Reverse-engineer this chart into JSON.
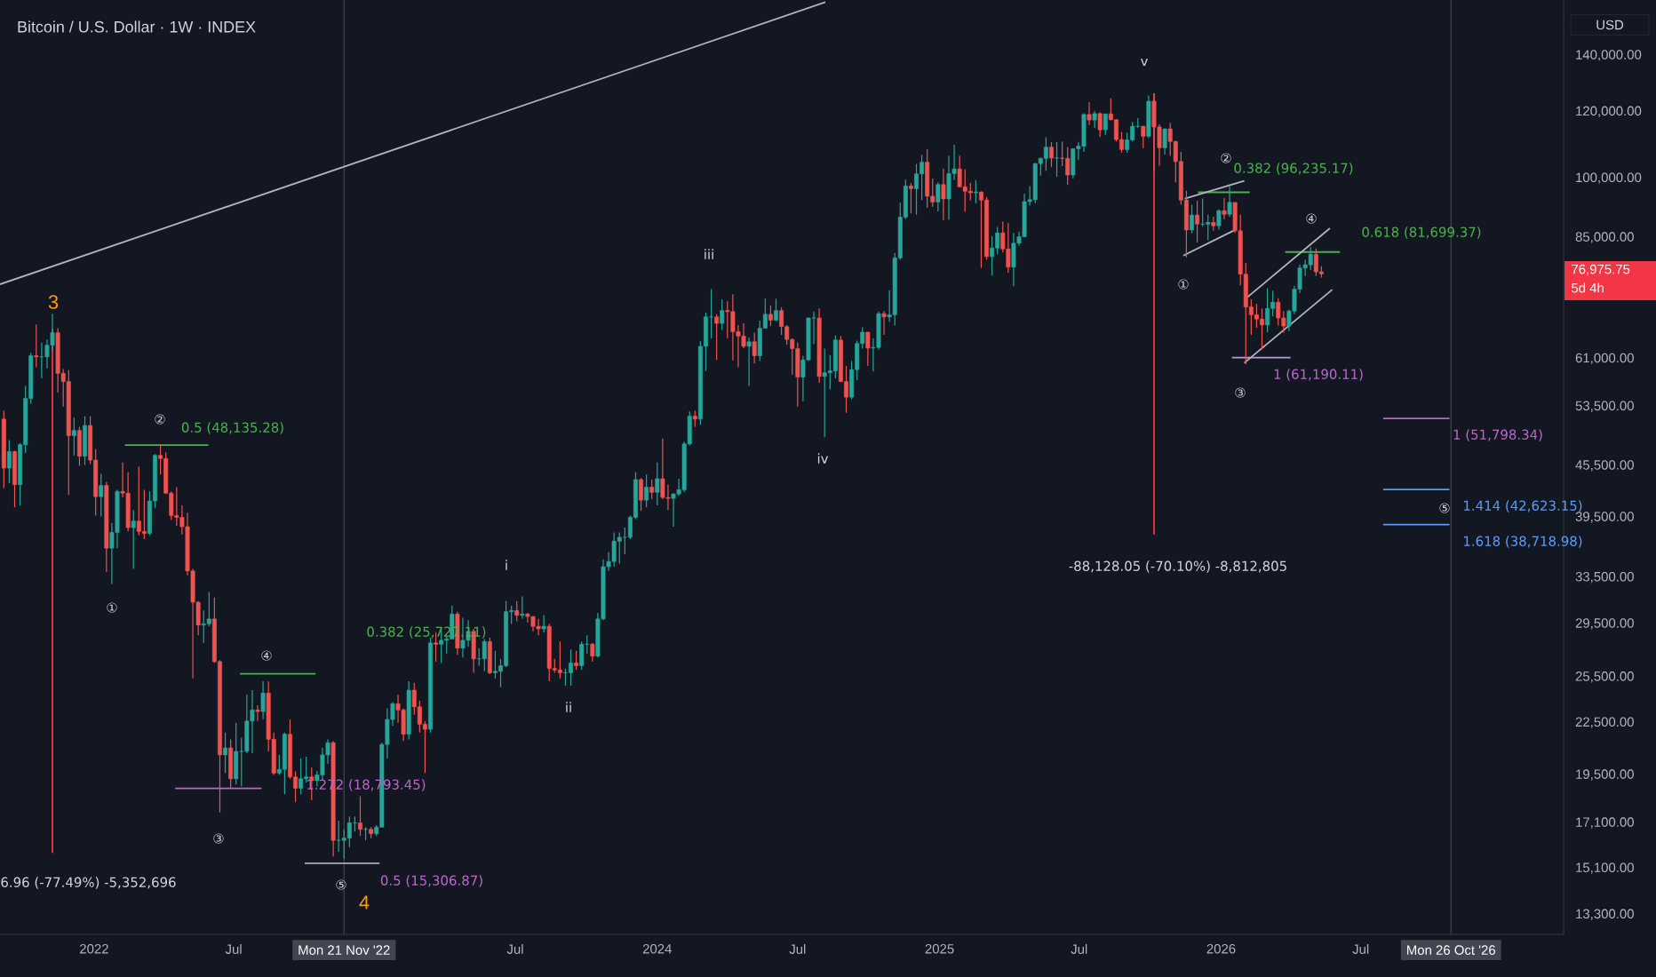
{
  "chart_data": {
    "type": "candlestick",
    "title": "Bitcoin / U.S. Dollar · 1W · INDEX",
    "log": "y",
    "xlim": [
      "2021-09-01",
      "2027-03-21"
    ],
    "ylim": [
      12600,
      163000
    ],
    "xticks": [
      {
        "value": "2022-01-01",
        "label": "2022"
      },
      {
        "value": "2022-07-01",
        "label": "Jul"
      },
      {
        "value": "2023-07-01",
        "label": "Jul"
      },
      {
        "value": "2024-01-01",
        "label": "2024"
      },
      {
        "value": "2024-07-01",
        "label": "Jul"
      },
      {
        "value": "2025-01-01",
        "label": "2025"
      },
      {
        "value": "2025-07-01",
        "label": "Jul"
      },
      {
        "value": "2026-01-01",
        "label": "2026"
      },
      {
        "value": "2026-07-01",
        "label": "Jul"
      }
    ],
    "yticks": [
      {
        "value": 140000,
        "label": "140,000.00"
      },
      {
        "value": 120000,
        "label": "120,000.00"
      },
      {
        "value": 100000,
        "label": "100,000.00"
      },
      {
        "value": 85000,
        "label": "85,000.00"
      },
      {
        "value": 61000,
        "label": "61,000.00"
      },
      {
        "value": 53500,
        "label": "53,500.00"
      },
      {
        "value": 45500,
        "label": "45,500.00"
      },
      {
        "value": 39500,
        "label": "39,500.00"
      },
      {
        "value": 33500,
        "label": "33,500.00"
      },
      {
        "value": 29500,
        "label": "29,500.00"
      },
      {
        "value": 25500,
        "label": "25,500.00"
      },
      {
        "value": 22500,
        "label": "22,500.00"
      },
      {
        "value": 19500,
        "label": "19,500.00"
      },
      {
        "value": 17100,
        "label": "17,100.00"
      },
      {
        "value": 15100,
        "label": "15,100.00"
      },
      {
        "value": 13300,
        "label": "13,300.00"
      }
    ],
    "x": [
      "2021-09-06",
      "2021-09-13",
      "2021-09-20",
      "2021-09-27",
      "2021-10-04",
      "2021-10-11",
      "2021-10-18",
      "2021-10-25",
      "2021-11-01",
      "2021-11-08",
      "2021-11-15",
      "2021-11-22",
      "2021-11-29",
      "2021-12-06",
      "2021-12-13",
      "2021-12-20",
      "2021-12-27",
      "2022-01-03",
      "2022-01-10",
      "2022-01-17",
      "2022-01-24",
      "2022-01-31",
      "2022-02-07",
      "2022-02-14",
      "2022-02-21",
      "2022-02-28",
      "2022-03-07",
      "2022-03-14",
      "2022-03-21",
      "2022-03-28",
      "2022-04-04",
      "2022-04-11",
      "2022-04-18",
      "2022-04-25",
      "2022-05-02",
      "2022-05-09",
      "2022-05-16",
      "2022-05-23",
      "2022-05-30",
      "2022-06-06",
      "2022-06-13",
      "2022-06-20",
      "2022-06-27",
      "2022-07-04",
      "2022-07-11",
      "2022-07-18",
      "2022-07-25",
      "2022-08-01",
      "2022-08-08",
      "2022-08-15",
      "2022-08-22",
      "2022-08-29",
      "2022-09-05",
      "2022-09-12",
      "2022-09-19",
      "2022-09-26",
      "2022-10-03",
      "2022-10-10",
      "2022-10-17",
      "2022-10-24",
      "2022-10-31",
      "2022-11-07",
      "2022-11-14",
      "2022-11-21",
      "2022-11-28",
      "2022-12-05",
      "2022-12-12",
      "2022-12-19",
      "2022-12-26",
      "2023-01-02",
      "2023-01-09",
      "2023-01-16",
      "2023-01-23",
      "2023-01-30",
      "2023-02-06",
      "2023-02-13",
      "2023-02-20",
      "2023-02-27",
      "2023-03-06",
      "2023-03-13",
      "2023-03-20",
      "2023-03-27",
      "2023-04-03",
      "2023-04-10",
      "2023-04-17",
      "2023-04-24",
      "2023-05-01",
      "2023-05-08",
      "2023-05-15",
      "2023-05-22",
      "2023-05-29",
      "2023-06-05",
      "2023-06-12",
      "2023-06-19",
      "2023-06-26",
      "2023-07-03",
      "2023-07-10",
      "2023-07-17",
      "2023-07-24",
      "2023-07-31",
      "2023-08-07",
      "2023-08-14",
      "2023-08-21",
      "2023-08-28",
      "2023-09-04",
      "2023-09-11",
      "2023-09-18",
      "2023-09-25",
      "2023-10-02",
      "2023-10-09",
      "2023-10-16",
      "2023-10-23",
      "2023-10-30",
      "2023-11-06",
      "2023-11-13",
      "2023-11-20",
      "2023-11-27",
      "2023-12-04",
      "2023-12-11",
      "2023-12-18",
      "2023-12-25",
      "2024-01-01",
      "2024-01-08",
      "2024-01-15",
      "2024-01-22",
      "2024-01-29",
      "2024-02-05",
      "2024-02-12",
      "2024-02-19",
      "2024-02-26",
      "2024-03-04",
      "2024-03-11",
      "2024-03-18",
      "2024-03-25",
      "2024-04-01",
      "2024-04-08",
      "2024-04-15",
      "2024-04-22",
      "2024-04-29",
      "2024-05-06",
      "2024-05-13",
      "2024-05-20",
      "2024-05-27",
      "2024-06-03",
      "2024-06-10",
      "2024-06-17",
      "2024-06-24",
      "2024-07-01",
      "2024-07-08",
      "2024-07-15",
      "2024-07-22",
      "2024-07-29",
      "2024-08-05",
      "2024-08-12",
      "2024-08-19",
      "2024-08-26",
      "2024-09-02",
      "2024-09-09",
      "2024-09-16",
      "2024-09-23",
      "2024-09-30",
      "2024-10-07",
      "2024-10-14",
      "2024-10-21",
      "2024-10-28",
      "2024-11-04",
      "2024-11-11",
      "2024-11-18",
      "2024-11-25",
      "2024-12-02",
      "2024-12-09",
      "2024-12-16",
      "2024-12-23",
      "2024-12-30",
      "2025-01-06",
      "2025-01-13",
      "2025-01-20",
      "2025-01-27",
      "2025-02-03",
      "2025-02-10",
      "2025-02-17",
      "2025-02-24",
      "2025-03-03",
      "2025-03-10",
      "2025-03-17",
      "2025-03-24",
      "2025-03-31",
      "2025-04-07",
      "2025-04-14",
      "2025-04-21",
      "2025-04-28",
      "2025-05-05",
      "2025-05-12",
      "2025-05-19",
      "2025-05-26",
      "2025-06-02",
      "2025-06-09",
      "2025-06-16",
      "2025-06-23",
      "2025-06-30",
      "2025-07-07",
      "2025-07-14",
      "2025-07-21",
      "2025-07-28",
      "2025-08-04",
      "2025-08-11",
      "2025-08-18",
      "2025-08-25",
      "2025-09-01",
      "2025-09-08",
      "2025-09-15",
      "2025-09-22",
      "2025-09-29",
      "2025-10-06",
      "2025-10-13",
      "2025-10-20",
      "2025-10-27",
      "2025-11-03",
      "2025-11-10",
      "2025-11-17",
      "2025-11-24",
      "2025-12-01",
      "2025-12-08",
      "2025-12-15",
      "2025-12-22",
      "2025-12-29",
      "2026-01-05",
      "2026-01-12",
      "2026-01-19",
      "2026-01-26",
      "2026-02-02",
      "2026-02-09",
      "2026-02-16",
      "2026-02-23",
      "2026-03-02",
      "2026-03-09",
      "2026-03-16",
      "2026-03-23",
      "2026-03-30",
      "2026-04-06",
      "2026-04-13",
      "2026-04-20",
      "2026-04-27",
      "2026-05-04",
      "2026-05-11"
    ],
    "ohlc": [
      [
        51700,
        52900,
        42800,
        45200
      ],
      [
        45200,
        48800,
        43400,
        47300
      ],
      [
        47300,
        47400,
        40600,
        43200
      ],
      [
        43200,
        48400,
        40800,
        48200
      ],
      [
        48200,
        56600,
        47100,
        54700
      ],
      [
        54700,
        62000,
        53900,
        61500
      ],
      [
        61500,
        67000,
        59600,
        61300
      ],
      [
        61300,
        63700,
        57800,
        61300
      ],
      [
        61300,
        64300,
        59400,
        63300
      ],
      [
        63300,
        69000,
        62300,
        65500
      ],
      [
        65500,
        66300,
        55600,
        58600
      ],
      [
        58600,
        59300,
        53500,
        57300
      ],
      [
        57300,
        59100,
        42000,
        49400
      ],
      [
        49400,
        51900,
        46800,
        50100
      ],
      [
        50100,
        50600,
        45500,
        46700
      ],
      [
        46700,
        52100,
        45600,
        50800
      ],
      [
        50800,
        52100,
        45700,
        46200
      ],
      [
        46200,
        47600,
        39700,
        41800
      ],
      [
        41800,
        44500,
        39600,
        43100
      ],
      [
        43100,
        43500,
        34000,
        36300
      ],
      [
        36300,
        38900,
        32900,
        37900
      ],
      [
        37900,
        42600,
        36300,
        42400
      ],
      [
        42400,
        45900,
        41700,
        42200
      ],
      [
        42200,
        44700,
        38000,
        38400
      ],
      [
        38400,
        40300,
        34300,
        39100
      ],
      [
        39100,
        45400,
        37600,
        38000
      ],
      [
        38000,
        42600,
        37200,
        37800
      ],
      [
        37800,
        42400,
        37600,
        41300
      ],
      [
        41300,
        47000,
        40500,
        46800
      ],
      [
        46800,
        48200,
        44400,
        46400
      ],
      [
        46400,
        47200,
        42100,
        42200
      ],
      [
        42200,
        42400,
        39200,
        39700
      ],
      [
        39700,
        42900,
        38600,
        39500
      ],
      [
        39500,
        40800,
        37700,
        38500
      ],
      [
        38500,
        40000,
        33700,
        34100
      ],
      [
        34100,
        34300,
        25400,
        31300
      ],
      [
        31300,
        31400,
        28600,
        29400
      ],
      [
        29400,
        30600,
        28000,
        29500
      ],
      [
        29500,
        32200,
        29300,
        29900
      ],
      [
        29900,
        31700,
        26500,
        26600
      ],
      [
        26600,
        26700,
        17600,
        20600
      ],
      [
        20600,
        21900,
        19600,
        21000
      ],
      [
        21000,
        21500,
        18800,
        19300
      ],
      [
        19300,
        22500,
        19000,
        20800
      ],
      [
        20800,
        21600,
        18900,
        20800
      ],
      [
        20800,
        24300,
        20700,
        22600
      ],
      [
        22600,
        24600,
        20700,
        23300
      ],
      [
        23300,
        23600,
        22600,
        23200
      ],
      [
        23200,
        25200,
        22700,
        24400
      ],
      [
        24400,
        25200,
        20800,
        21500
      ],
      [
        21500,
        21900,
        19500,
        19600
      ],
      [
        19600,
        20600,
        19500,
        19800
      ],
      [
        19800,
        21900,
        18500,
        21800
      ],
      [
        21800,
        22700,
        19300,
        19400
      ],
      [
        19400,
        19700,
        18100,
        18800
      ],
      [
        18800,
        20400,
        18500,
        19300
      ],
      [
        19300,
        20500,
        19100,
        19400
      ],
      [
        19400,
        19900,
        18200,
        19200
      ],
      [
        19200,
        19700,
        18900,
        19500
      ],
      [
        19500,
        21000,
        19200,
        20600
      ],
      [
        20600,
        21500,
        20100,
        21300
      ],
      [
        21300,
        21400,
        15600,
        16300
      ],
      [
        16300,
        17200,
        15800,
        16300
      ],
      [
        16300,
        16800,
        15500,
        16400
      ],
      [
        16400,
        17400,
        16000,
        17100
      ],
      [
        17100,
        17400,
        16700,
        17100
      ],
      [
        17100,
        18400,
        16500,
        16800
      ],
      [
        16800,
        16900,
        16300,
        16800
      ],
      [
        16800,
        16900,
        16400,
        16600
      ],
      [
        16600,
        17000,
        16500,
        16900
      ],
      [
        16900,
        21300,
        16900,
        21200
      ],
      [
        21200,
        23400,
        20400,
        22700
      ],
      [
        22700,
        23800,
        22300,
        23700
      ],
      [
        23700,
        24300,
        22500,
        23300
      ],
      [
        23300,
        23400,
        21400,
        21800
      ],
      [
        21800,
        25200,
        21500,
        24600
      ],
      [
        24600,
        25100,
        23000,
        23500
      ],
      [
        23500,
        23900,
        21900,
        22400
      ],
      [
        22400,
        22600,
        19600,
        22100
      ],
      [
        22100,
        28400,
        21900,
        28000
      ],
      [
        28000,
        28800,
        26600,
        27900
      ],
      [
        27900,
        29200,
        26500,
        28200
      ],
      [
        28200,
        28500,
        27200,
        28300
      ],
      [
        28300,
        31000,
        28300,
        30300
      ],
      [
        30300,
        30500,
        27100,
        27600
      ],
      [
        27600,
        30000,
        26900,
        28200
      ],
      [
        28200,
        29800,
        27700,
        28900
      ],
      [
        28900,
        29100,
        25800,
        26800
      ],
      [
        26800,
        27600,
        26300,
        26800
      ],
      [
        26800,
        28300,
        25900,
        28100
      ],
      [
        28100,
        28400,
        25700,
        25800
      ],
      [
        25800,
        27400,
        25400,
        25900
      ],
      [
        25900,
        26800,
        24800,
        26300
      ],
      [
        26300,
        31400,
        26200,
        30500
      ],
      [
        30500,
        31000,
        29500,
        30600
      ],
      [
        30600,
        31400,
        29700,
        30200
      ],
      [
        30200,
        31800,
        29900,
        30300
      ],
      [
        30300,
        30400,
        29600,
        30100
      ],
      [
        30100,
        30100,
        28900,
        29300
      ],
      [
        29300,
        29900,
        28600,
        29100
      ],
      [
        29100,
        30200,
        28800,
        29300
      ],
      [
        29300,
        29500,
        25200,
        26100
      ],
      [
        26100,
        26800,
        25800,
        26000
      ],
      [
        26000,
        28100,
        25400,
        25800
      ],
      [
        25800,
        26100,
        24900,
        25800
      ],
      [
        25800,
        27500,
        24900,
        26500
      ],
      [
        26500,
        27400,
        26000,
        26300
      ],
      [
        26300,
        28100,
        26000,
        27900
      ],
      [
        27900,
        28600,
        27200,
        27900
      ],
      [
        27900,
        28000,
        26600,
        27000
      ],
      [
        27000,
        30400,
        26900,
        29900
      ],
      [
        29900,
        35200,
        29800,
        34500
      ],
      [
        34500,
        35900,
        34100,
        35000
      ],
      [
        35000,
        37900,
        34500,
        37000
      ],
      [
        37000,
        37900,
        34800,
        37400
      ],
      [
        37400,
        38400,
        35700,
        37400
      ],
      [
        37400,
        39700,
        37200,
        39500
      ],
      [
        39500,
        44700,
        39300,
        43800
      ],
      [
        43800,
        44000,
        40200,
        41400
      ],
      [
        41400,
        44400,
        40600,
        42900
      ],
      [
        42900,
        43800,
        41500,
        42300
      ],
      [
        42300,
        45900,
        40800,
        43900
      ],
      [
        43900,
        49000,
        41500,
        41700
      ],
      [
        41700,
        43200,
        40300,
        41600
      ],
      [
        41600,
        42200,
        38500,
        42100
      ],
      [
        42100,
        43900,
        41900,
        42600
      ],
      [
        42600,
        48600,
        42300,
        48300
      ],
      [
        48300,
        52800,
        48100,
        52100
      ],
      [
        52100,
        52900,
        50600,
        51700
      ],
      [
        51700,
        64000,
        50900,
        63100
      ],
      [
        63100,
        69200,
        59000,
        68400
      ],
      [
        68400,
        73800,
        64500,
        68400
      ],
      [
        68400,
        68900,
        60800,
        67200
      ],
      [
        67200,
        71800,
        66000,
        69600
      ],
      [
        69600,
        71400,
        64500,
        69400
      ],
      [
        69400,
        72800,
        60700,
        65700
      ],
      [
        65700,
        66900,
        59600,
        64900
      ],
      [
        64900,
        67200,
        62800,
        63100
      ],
      [
        63100,
        64700,
        56600,
        63900
      ],
      [
        63900,
        65500,
        60200,
        61500
      ],
      [
        61500,
        67700,
        60600,
        66300
      ],
      [
        66300,
        71900,
        66300,
        68900
      ],
      [
        68900,
        70600,
        66700,
        67800
      ],
      [
        67800,
        71900,
        67600,
        69600
      ],
      [
        69600,
        70200,
        65100,
        66600
      ],
      [
        66600,
        66900,
        63400,
        64300
      ],
      [
        64300,
        64500,
        58400,
        62700
      ],
      [
        62700,
        63800,
        53500,
        58000
      ],
      [
        58000,
        61500,
        54300,
        60800
      ],
      [
        60800,
        68300,
        60600,
        68200
      ],
      [
        68200,
        69400,
        63500,
        68200
      ],
      [
        68200,
        70000,
        57100,
        58100
      ],
      [
        58100,
        62700,
        49200,
        58700
      ],
      [
        58700,
        61600,
        56100,
        59000
      ],
      [
        59000,
        65000,
        57800,
        64200
      ],
      [
        64200,
        64900,
        57200,
        57300
      ],
      [
        57300,
        59800,
        52600,
        54900
      ],
      [
        54900,
        60600,
        54600,
        59200
      ],
      [
        59200,
        64100,
        57500,
        63600
      ],
      [
        63600,
        66500,
        62700,
        65600
      ],
      [
        65600,
        65600,
        59800,
        62800
      ],
      [
        62800,
        64500,
        58900,
        62900
      ],
      [
        62900,
        69400,
        62500,
        69000
      ],
      [
        69000,
        69500,
        65100,
        68400
      ],
      [
        68400,
        73600,
        67500,
        68800
      ],
      [
        68800,
        81500,
        66800,
        80400
      ],
      [
        80400,
        93500,
        80000,
        89900
      ],
      [
        89900,
        99600,
        89400,
        97900
      ],
      [
        97900,
        98700,
        90800,
        97200
      ],
      [
        97200,
        104000,
        90500,
        101200
      ],
      [
        101200,
        106600,
        94200,
        104500
      ],
      [
        104500,
        108300,
        92200,
        95200
      ],
      [
        95200,
        99900,
        92500,
        93700
      ],
      [
        93700,
        98900,
        91300,
        98300
      ],
      [
        98300,
        102700,
        89200,
        94500
      ],
      [
        94500,
        106400,
        89300,
        101300
      ],
      [
        101300,
        109600,
        99500,
        102600
      ],
      [
        102600,
        106400,
        97500,
        97700
      ],
      [
        97700,
        102500,
        91200,
        96500
      ],
      [
        96500,
        98800,
        94100,
        96100
      ],
      [
        96100,
        99500,
        93400,
        96300
      ],
      [
        96300,
        96500,
        78200,
        94200
      ],
      [
        94200,
        95000,
        80000,
        80700
      ],
      [
        80700,
        85300,
        76600,
        82600
      ],
      [
        82600,
        87500,
        81200,
        86100
      ],
      [
        86100,
        88800,
        81600,
        82400
      ],
      [
        82400,
        88500,
        77200,
        78400
      ],
      [
        78400,
        86100,
        74400,
        83700
      ],
      [
        83700,
        86400,
        83100,
        85200
      ],
      [
        85200,
        95800,
        85100,
        93800
      ],
      [
        93800,
        97900,
        92800,
        94300
      ],
      [
        94300,
        104300,
        93400,
        104100
      ],
      [
        104100,
        105800,
        100700,
        105600
      ],
      [
        105600,
        111900,
        102100,
        108900
      ],
      [
        108900,
        110400,
        103100,
        105700
      ],
      [
        105700,
        110400,
        100400,
        105700
      ],
      [
        105700,
        110600,
        103400,
        105600
      ],
      [
        105600,
        108900,
        98200,
        100900
      ],
      [
        100900,
        108500,
        100000,
        108400
      ],
      [
        108400,
        110500,
        105100,
        109200
      ],
      [
        109200,
        119500,
        107500,
        119100
      ],
      [
        119100,
        123200,
        115700,
        117300
      ],
      [
        117300,
        120200,
        114700,
        119400
      ],
      [
        119400,
        119800,
        112000,
        114200
      ],
      [
        114200,
        119300,
        112600,
        119300
      ],
      [
        119300,
        124500,
        117200,
        117400
      ],
      [
        117400,
        117600,
        110600,
        111200
      ],
      [
        111200,
        113500,
        107300,
        108200
      ],
      [
        108200,
        113400,
        107300,
        111100
      ],
      [
        111100,
        116700,
        110600,
        115300
      ],
      [
        115300,
        117900,
        114700,
        115300
      ],
      [
        115300,
        115400,
        108600,
        112200
      ],
      [
        112200,
        125500,
        111600,
        123500
      ],
      [
        123500,
        126200,
        102000,
        115100
      ],
      [
        115100,
        115900,
        103500,
        108700
      ],
      [
        108700,
        114600,
        106700,
        114500
      ],
      [
        114500,
        116400,
        106300,
        110600
      ],
      [
        110600,
        110800,
        98900,
        104700
      ],
      [
        104700,
        107500,
        93000,
        94200
      ],
      [
        94200,
        96600,
        80500,
        86800
      ],
      [
        86800,
        93000,
        86000,
        90400
      ],
      [
        90400,
        94000,
        83900,
        88200
      ],
      [
        88200,
        94600,
        87600,
        88200
      ],
      [
        88200,
        90500,
        84400,
        88600
      ],
      [
        88600,
        90000,
        86600,
        87800
      ],
      [
        87800,
        91800,
        86900,
        91500
      ],
      [
        91500,
        94800,
        89400,
        90600
      ],
      [
        90600,
        97900,
        90000,
        93600
      ],
      [
        93600,
        93600,
        86100,
        86600
      ],
      [
        86600,
        90500,
        74600,
        76900
      ],
      [
        76900,
        79300,
        60100,
        70300
      ],
      [
        70300,
        71800,
        65100,
        68800
      ],
      [
        68800,
        70900,
        66400,
        68000
      ],
      [
        68000,
        70000,
        62600,
        66900
      ],
      [
        66900,
        74000,
        65600,
        70000
      ],
      [
        70000,
        73500,
        68500,
        71200
      ],
      [
        71200,
        72000,
        66800,
        68200
      ],
      [
        68200,
        69500,
        65500,
        66700
      ],
      [
        66700,
        69800,
        65800,
        69500
      ],
      [
        69500,
        74500,
        68900,
        73800
      ],
      [
        73800,
        79000,
        73000,
        78200
      ],
      [
        78200,
        80000,
        76500,
        78900
      ],
      [
        78900,
        82800,
        77800,
        81200
      ],
      [
        81200,
        82500,
        76500,
        77400
      ],
      [
        77400,
        78600,
        76200,
        76975.75
      ]
    ],
    "series": [
      {
        "type": "line",
        "x": [
          "2021-09-01",
          "2024-08-06"
        ],
        "values": [
          74800,
          162000
        ],
        "color": "#b2b5be"
      },
      {
        "type": "line",
        "x": [
          "2021-11-08",
          "2021-11-08"
        ],
        "values": [
          66200,
          15750
        ],
        "color": "#f23645"
      },
      {
        "type": "line",
        "x": [
          "2025-10-06",
          "2025-10-06"
        ],
        "values": [
          126200,
          37700
        ],
        "color": "#f23645"
      },
      {
        "type": "line",
        "x": [
          "2022-02-10",
          "2022-05-29"
        ],
        "values": [
          48135.28,
          48135.28
        ],
        "color": "#4caf50"
      },
      {
        "type": "line",
        "x": [
          "2022-07-09",
          "2022-10-15"
        ],
        "values": [
          25727.11,
          25727.11
        ],
        "color": "#4caf50"
      },
      {
        "type": "line",
        "x": [
          "2022-04-16",
          "2022-08-06"
        ],
        "values": [
          18793.45,
          18793.45
        ],
        "color": "#ba68c8"
      },
      {
        "type": "line",
        "x": [
          "2022-10-01",
          "2023-01-06"
        ],
        "values": [
          15306.87,
          15306.87
        ],
        "color": "#9598a1"
      },
      {
        "type": "line",
        "x": [
          "2025-12-02",
          "2026-02-07"
        ],
        "values": [
          96235.17,
          96235.17
        ],
        "color": "#4caf50"
      },
      {
        "type": "line",
        "x": [
          "2026-03-25",
          "2026-06-04"
        ],
        "values": [
          81699.37,
          81699.37
        ],
        "color": "#4caf50"
      },
      {
        "type": "line",
        "x": [
          "2026-01-15",
          "2026-04-01"
        ],
        "values": [
          61190.11,
          61190.11
        ],
        "color": "#b39ddb"
      },
      {
        "type": "line",
        "x": [
          "2026-07-30",
          "2026-10-24"
        ],
        "values": [
          51798.34,
          51798.34
        ],
        "color": "#ba68c8"
      },
      {
        "type": "line",
        "x": [
          "2026-07-30",
          "2026-10-24"
        ],
        "values": [
          42623.15,
          42623.15
        ],
        "color": "#5b9cf6"
      },
      {
        "type": "line",
        "x": [
          "2026-07-30",
          "2026-10-24"
        ],
        "values": [
          38718.98,
          38718.98
        ],
        "color": "#5b9cf6"
      },
      {
        "type": "line",
        "x": [
          "2025-11-15",
          "2026-01-31"
        ],
        "values": [
          94600,
          99300
        ],
        "color": "#b2b5be"
      },
      {
        "type": "line",
        "x": [
          "2025-11-13",
          "2026-01-19"
        ],
        "values": [
          80900,
          86800
        ],
        "color": "#b2b5be"
      },
      {
        "type": "line",
        "x": [
          "2026-02-04",
          "2026-05-22"
        ],
        "values": [
          72200,
          87200
        ],
        "color": "#b2b5be"
      },
      {
        "type": "line",
        "x": [
          "2026-01-31",
          "2026-05-25"
        ],
        "values": [
          60300,
          73700
        ],
        "color": "#b2b5be"
      }
    ],
    "ref_lines": [
      {
        "axis": "x",
        "value": "2022-11-21",
        "label": "Mon 21 Nov '22",
        "color": "#434651"
      },
      {
        "axis": "x",
        "value": "2026-10-26",
        "label": "Mon 26 Oct '26",
        "color": "#434651"
      }
    ],
    "annotations": [
      "USD",
      "76,975.75",
      "5d 4h",
      "3",
      "②",
      "0.5 (48,135.28)",
      "①",
      "④",
      "③",
      "0.382 (25,727.11)",
      "1.272 (18,793.45)",
      "⑤",
      "4",
      "0.5 (15,306.87)",
      "6.96 (-77.49%) -5,352,696",
      "i",
      "ii",
      "iii",
      "iv",
      "v",
      "-88,128.05 (-70.10%) -8,812,805",
      "②",
      "0.382 (96,235.17)",
      "①",
      "④",
      "0.618 (81,699.37)",
      "③",
      "1 (61,190.11)",
      "1 (51,798.34)",
      "⑤",
      "1.414 (42,623.15)",
      "1.618 (38,718.98)"
    ]
  }
}
